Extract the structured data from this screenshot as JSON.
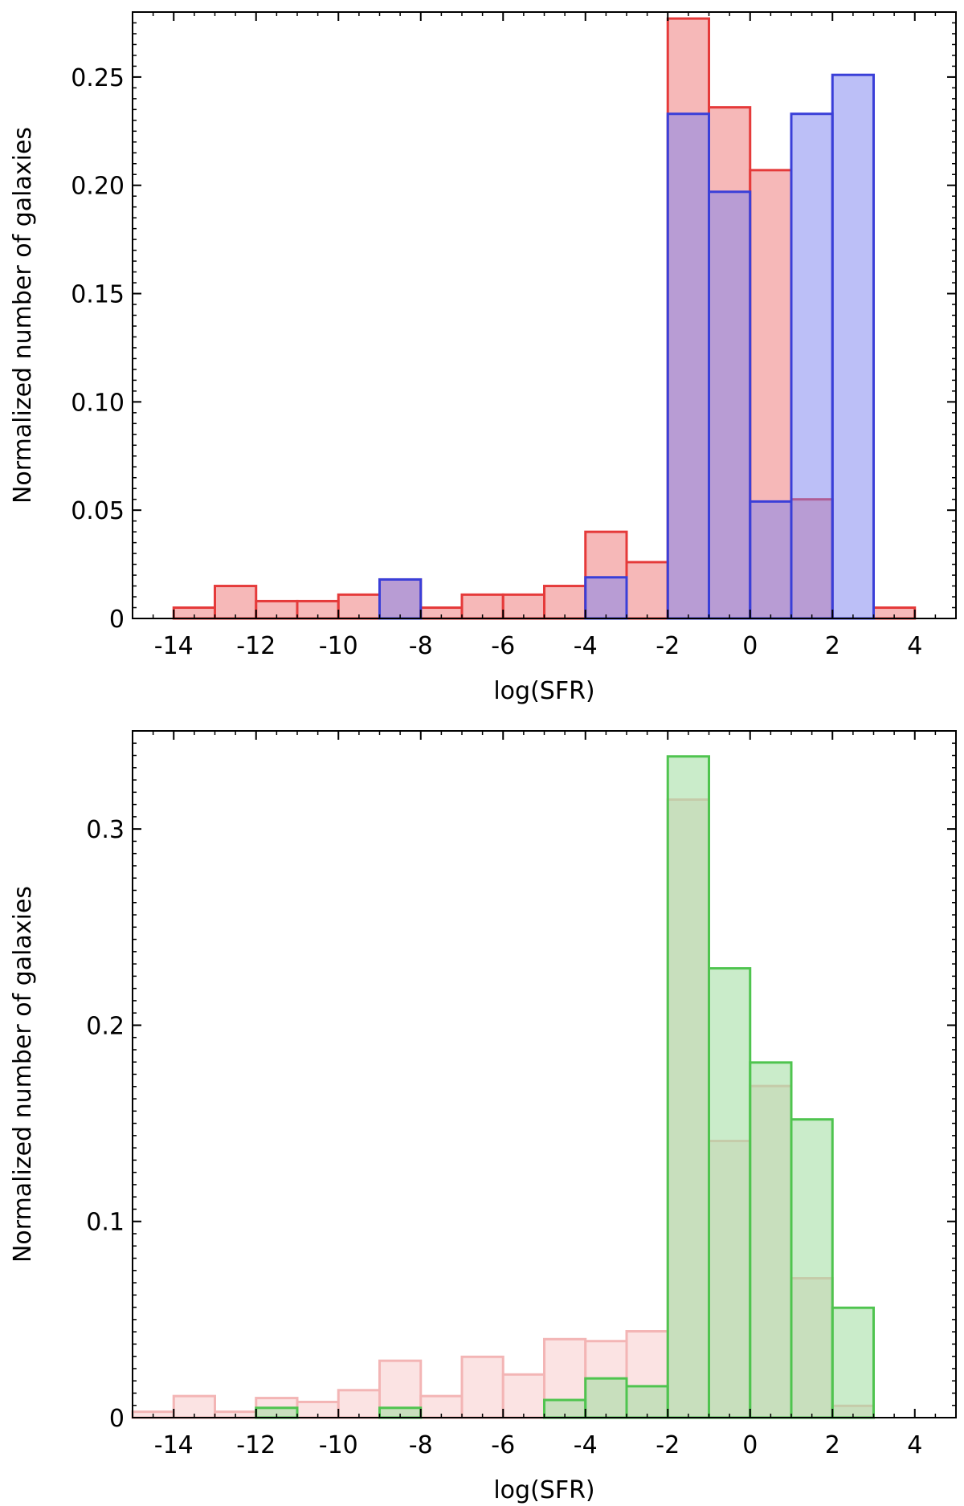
{
  "chart_data": [
    {
      "type": "bar",
      "panel": "top",
      "xlabel": "log(SFR)",
      "ylabel": "Normalized number of galaxies",
      "xlim": [
        -15,
        5
      ],
      "ylim": [
        0,
        0.28
      ],
      "xticks": [
        -14,
        -12,
        -10,
        -8,
        -6,
        -4,
        -2,
        0,
        2,
        4
      ],
      "xtick_labels": [
        "-14",
        "-12",
        "-10",
        "-8",
        "-6",
        "-4",
        "-2",
        "0",
        "2",
        "4"
      ],
      "yticks": [
        0,
        0.05,
        0.1,
        0.15,
        0.2,
        0.25
      ],
      "ytick_labels": [
        "0",
        "0.05",
        "0.10",
        "0.15",
        "0.20",
        "0.25"
      ],
      "bin_edges": [
        -14,
        -13,
        -12,
        -11,
        -10,
        -9,
        -8,
        -7,
        -6,
        -5,
        -4,
        -3,
        -2,
        -1,
        0,
        1,
        2,
        3,
        4
      ],
      "series": [
        {
          "name": "red",
          "fill": "#f4a6a6",
          "edge": "#e53a3a",
          "values": [
            0.005,
            0.015,
            0.008,
            0.008,
            0.011,
            0.018,
            0.005,
            0.011,
            0.011,
            0.015,
            0.04,
            0.026,
            0.277,
            0.236,
            0.207,
            0.055,
            0.0,
            0.005
          ]
        },
        {
          "name": "blue",
          "fill": "#7a7ff0",
          "edge": "#3a3fd8",
          "values": [
            0,
            0,
            0,
            0,
            0,
            0.018,
            0,
            0,
            0,
            0,
            0.019,
            0,
            0.233,
            0.197,
            0.054,
            0.233,
            0.251,
            0
          ]
        }
      ]
    },
    {
      "type": "bar",
      "panel": "bottom",
      "xlabel": "log(SFR)",
      "ylabel": "Normalized number of galaxies",
      "xlim": [
        -15,
        5
      ],
      "ylim": [
        0,
        0.35
      ],
      "xticks": [
        -14,
        -12,
        -10,
        -8,
        -6,
        -4,
        -2,
        0,
        2,
        4
      ],
      "xtick_labels": [
        "-14",
        "-12",
        "-10",
        "-8",
        "-6",
        "-4",
        "-2",
        "0",
        "2",
        "4"
      ],
      "yticks": [
        0,
        0.1,
        0.2,
        0.3
      ],
      "ytick_labels": [
        "0",
        "0.1",
        "0.2",
        "0.3"
      ],
      "bin_edges": [
        -15,
        -14,
        -13,
        -12,
        -11,
        -10,
        -9,
        -8,
        -7,
        -6,
        -5,
        -4,
        -3,
        -2,
        -1,
        0,
        1,
        2,
        3
      ],
      "series": [
        {
          "name": "pink",
          "fill": "#fbe0e0",
          "edge": "#f3b5b5",
          "values": [
            0.003,
            0.011,
            0.003,
            0.01,
            0.008,
            0.014,
            0.029,
            0.011,
            0.031,
            0.022,
            0.04,
            0.039,
            0.044,
            0.315,
            0.141,
            0.169,
            0.071,
            0.006
          ]
        },
        {
          "name": "green",
          "fill": "#9edc9e",
          "edge": "#4fc44f",
          "values": [
            0,
            0,
            0,
            0.005,
            0,
            0,
            0.005,
            0,
            0,
            0,
            0.009,
            0.02,
            0.016,
            0.337,
            0.229,
            0.181,
            0.152,
            0.056
          ]
        }
      ]
    }
  ]
}
